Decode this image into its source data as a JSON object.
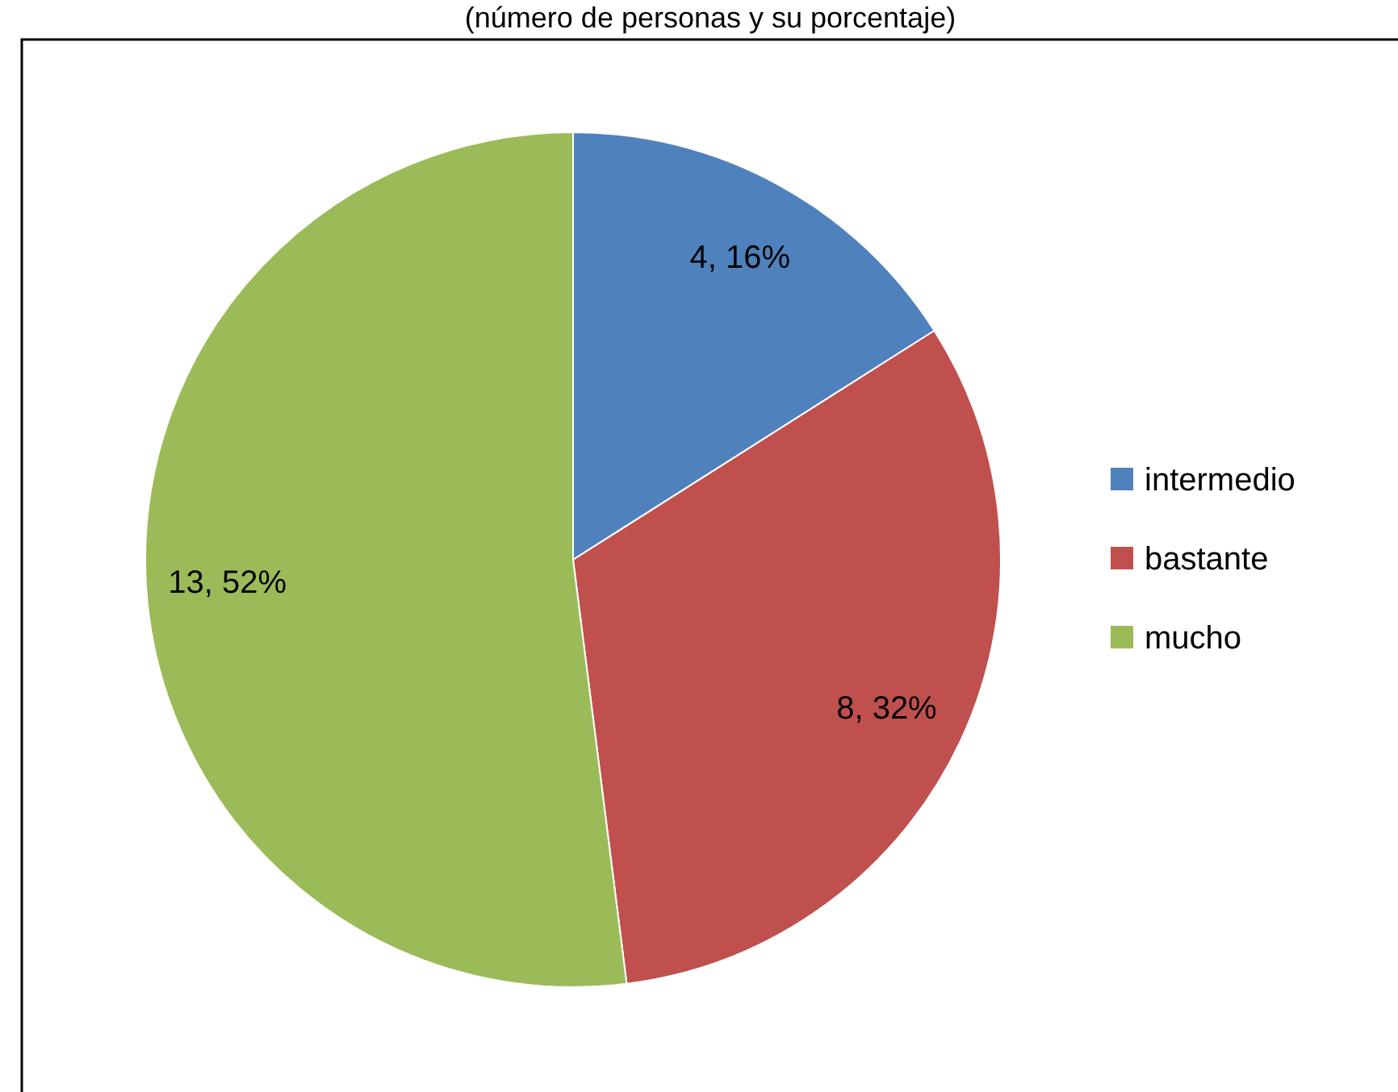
{
  "chart_data": {
    "type": "pie",
    "subtitle": "(número de personas y su porcentaje)",
    "categories": [
      "intermedio",
      "bastante",
      "mucho"
    ],
    "values": [
      4,
      8,
      13
    ],
    "colors": [
      "#4f81bd",
      "#c0504d",
      "#9bbb59"
    ],
    "value_labels": [
      "4, 16%",
      "8, 32%",
      "13, 52%"
    ],
    "legend": "right"
  }
}
